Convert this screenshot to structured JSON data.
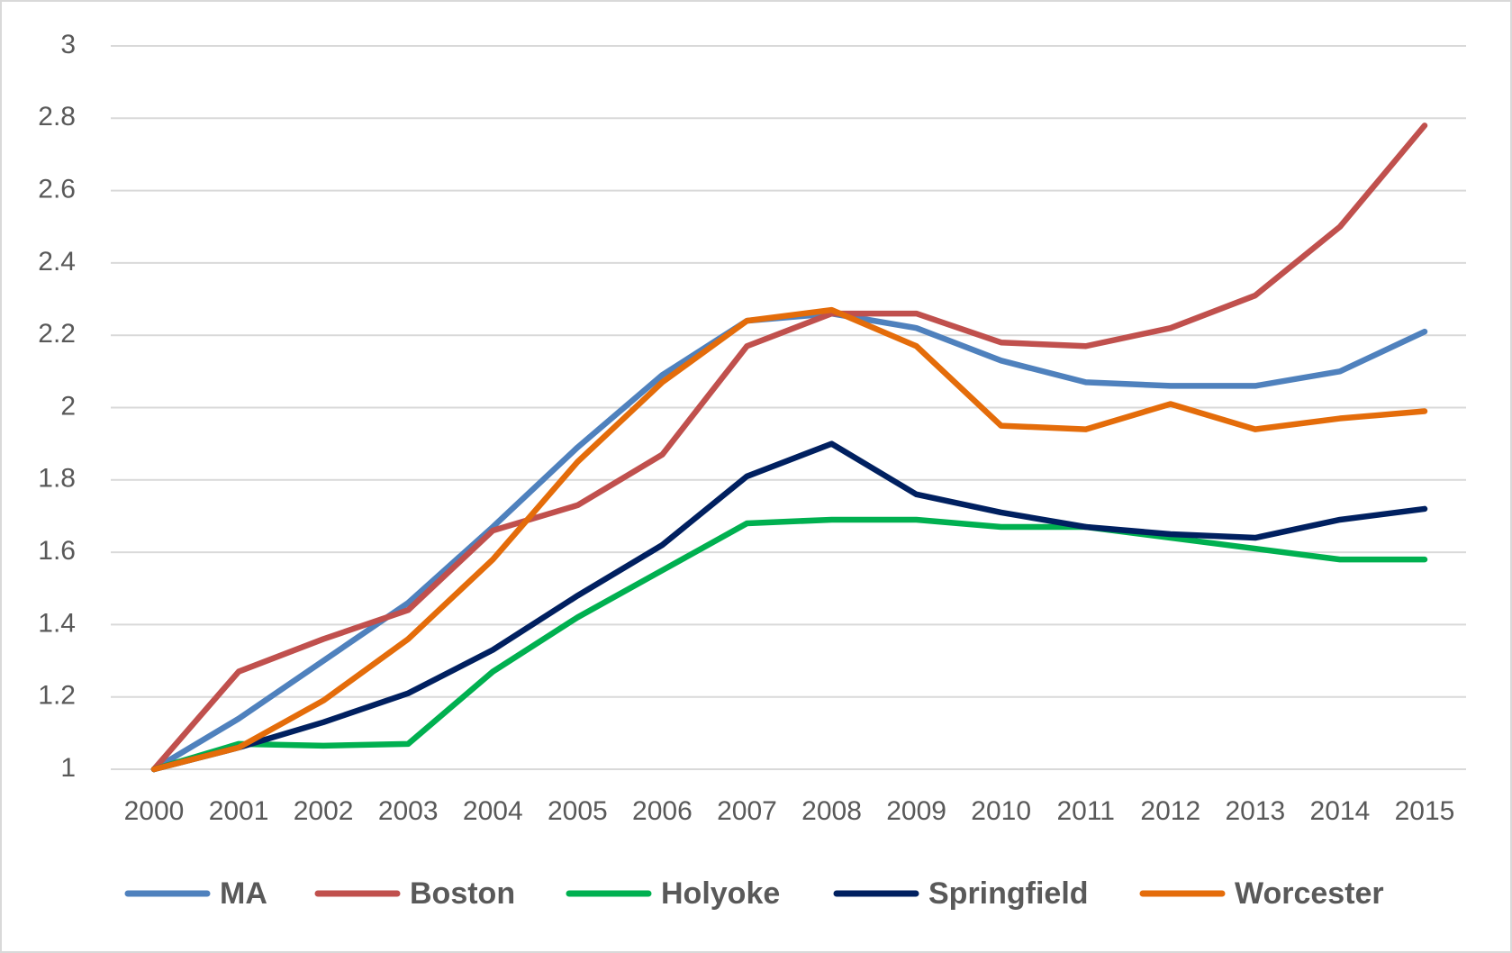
{
  "chart_data": {
    "type": "line",
    "categories": [
      "2000",
      "2001",
      "2002",
      "2003",
      "2004",
      "2005",
      "2006",
      "2007",
      "2008",
      "2009",
      "2010",
      "2011",
      "2012",
      "2013",
      "2014",
      "2015"
    ],
    "series": [
      {
        "name": "MA",
        "color": "#4f81bd",
        "values": [
          1,
          1.14,
          1.3,
          1.46,
          1.67,
          1.89,
          2.09,
          2.24,
          2.26,
          2.22,
          2.13,
          2.07,
          2.06,
          2.06,
          2.1,
          2.21
        ]
      },
      {
        "name": "Boston",
        "color": "#c0504d",
        "values": [
          1,
          1.27,
          1.36,
          1.44,
          1.66,
          1.73,
          1.87,
          2.17,
          2.26,
          2.26,
          2.18,
          2.17,
          2.22,
          2.31,
          2.5,
          2.78
        ]
      },
      {
        "name": "Holyoke",
        "color": "#00b050",
        "values": [
          1,
          1.07,
          1.065,
          1.07,
          1.27,
          1.42,
          1.55,
          1.68,
          1.69,
          1.69,
          1.67,
          1.67,
          1.64,
          1.61,
          1.58,
          1.58
        ]
      },
      {
        "name": "Springfield",
        "color": "#002060",
        "values": [
          1,
          1.06,
          1.13,
          1.21,
          1.33,
          1.48,
          1.62,
          1.81,
          1.9,
          1.76,
          1.71,
          1.67,
          1.65,
          1.64,
          1.69,
          1.72
        ]
      },
      {
        "name": "Worcester",
        "color": "#e46c0a",
        "values": [
          1,
          1.06,
          1.19,
          1.36,
          1.58,
          1.85,
          2.07,
          2.24,
          2.27,
          2.17,
          1.95,
          1.94,
          2.01,
          1.94,
          1.97,
          1.99
        ]
      }
    ],
    "ylim": [
      1,
      3
    ],
    "yticks": [
      1,
      1.2,
      1.4,
      1.6,
      1.8,
      2,
      2.2,
      2.4,
      2.6,
      2.8,
      3
    ],
    "grid": true,
    "legend": "bottom"
  }
}
